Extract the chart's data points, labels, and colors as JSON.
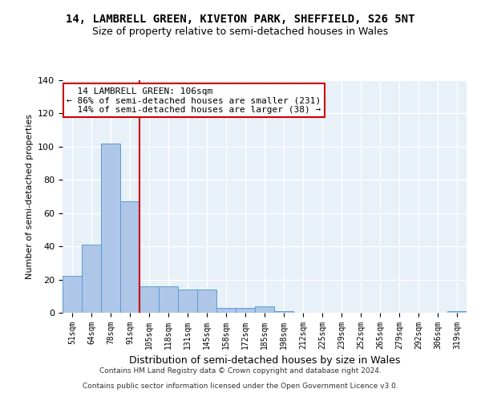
{
  "title": "14, LAMBRELL GREEN, KIVETON PARK, SHEFFIELD, S26 5NT",
  "subtitle": "Size of property relative to semi-detached houses in Wales",
  "xlabel": "Distribution of semi-detached houses by size in Wales",
  "ylabel": "Number of semi-detached properties",
  "bin_labels": [
    "51sqm",
    "64sqm",
    "78sqm",
    "91sqm",
    "105sqm",
    "118sqm",
    "131sqm",
    "145sqm",
    "158sqm",
    "172sqm",
    "185sqm",
    "198sqm",
    "212sqm",
    "225sqm",
    "239sqm",
    "252sqm",
    "265sqm",
    "279sqm",
    "292sqm",
    "306sqm",
    "319sqm"
  ],
  "bar_heights": [
    22,
    41,
    102,
    67,
    16,
    16,
    14,
    14,
    3,
    3,
    4,
    1,
    0,
    0,
    0,
    0,
    0,
    0,
    0,
    0,
    1
  ],
  "bar_color": "#aec6e8",
  "bar_edge_color": "#5a9fd4",
  "vline_x_index": 4,
  "vline_color": "#cc0000",
  "property_label": "14 LAMBRELL GREEN: 106sqm",
  "pct_smaller": 86,
  "count_smaller": 231,
  "pct_larger": 14,
  "count_larger": 38,
  "annotation_box_color": "#cc0000",
  "ylim": [
    0,
    140
  ],
  "yticks": [
    0,
    20,
    40,
    60,
    80,
    100,
    120,
    140
  ],
  "footer_line1": "Contains HM Land Registry data © Crown copyright and database right 2024.",
  "footer_line2": "Contains public sector information licensed under the Open Government Licence v3.0.",
  "bg_color": "#e8f0f8",
  "fig_bg_color": "#ffffff",
  "grid_color": "#ffffff",
  "title_fontsize": 10,
  "subtitle_fontsize": 9,
  "annotation_fontsize": 8
}
